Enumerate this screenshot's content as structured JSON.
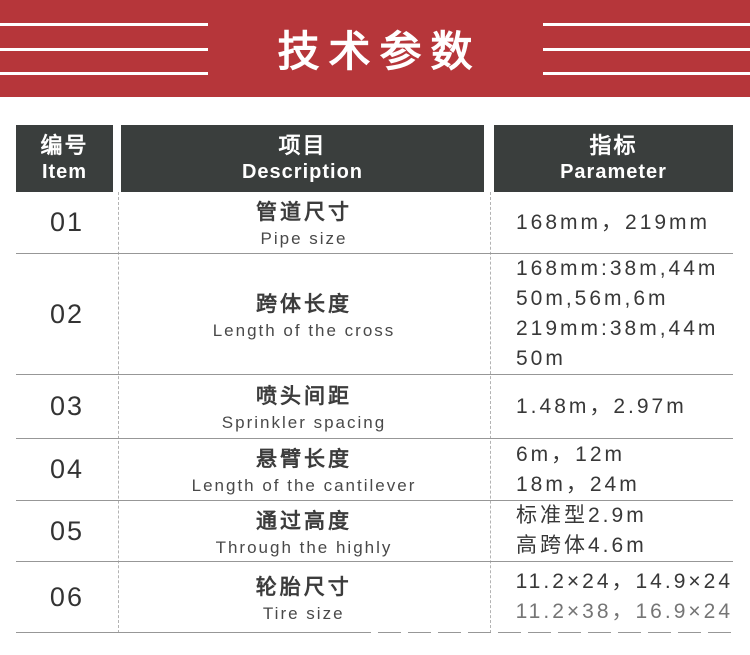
{
  "banner": {
    "title": "技术参数"
  },
  "colors": {
    "banner_red": "#b6363a",
    "header_dark": "#3a3e3d",
    "row_divider": "#979797",
    "column_divider_dashed": "#b3b3b3"
  },
  "table": {
    "header": {
      "item_zh": "编号",
      "item_en": "Item",
      "desc_zh": "项目",
      "desc_en": "Description",
      "param_zh": "指标",
      "param_en": "Parameter"
    },
    "rows": [
      {
        "item": "01",
        "desc_zh": "管道尺寸",
        "desc_en": "Pipe size",
        "params": [
          "168mm，219mm"
        ]
      },
      {
        "item": "02",
        "desc_zh": "跨体长度",
        "desc_en": "Length of the cross",
        "params": [
          "168mm:38m,44m",
          "50m,56m,6m",
          "219mm:38m,44m",
          "50m"
        ]
      },
      {
        "item": "03",
        "desc_zh": "喷头间距",
        "desc_en": "Sprinkler spacing",
        "params": [
          "1.48m，2.97m"
        ]
      },
      {
        "item": "04",
        "desc_zh": "悬臂长度",
        "desc_en": "Length of the cantilever",
        "params": [
          "6m，12m",
          "18m，24m"
        ]
      },
      {
        "item": "05",
        "desc_zh": "通过高度",
        "desc_en": "Through the highly",
        "params": [
          "标准型2.9m",
          "高跨体4.6m"
        ]
      },
      {
        "item": "06",
        "desc_zh": "轮胎尺寸",
        "desc_en": "Tire size",
        "params": [
          "11.2×24，14.9×24",
          "11.2×38，16.9×24"
        ]
      }
    ]
  }
}
